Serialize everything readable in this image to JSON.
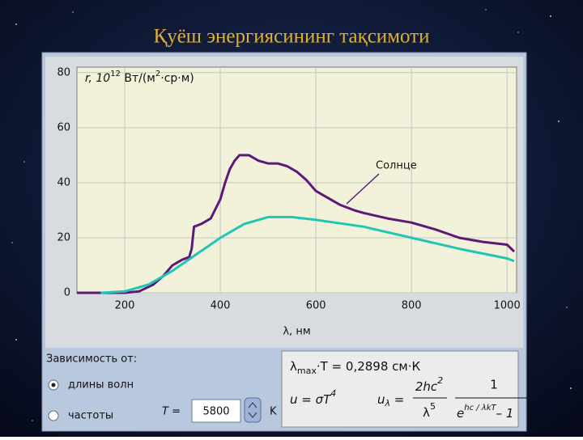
{
  "slide_title": "Қуёш энергиясининг тақсимоти",
  "chart_data": {
    "type": "line",
    "ylabel": [
      "r, 10",
      "12",
      " Вт/(м",
      "2",
      "·ср·м)"
    ],
    "xlabel": "λ, нм",
    "annotation": "Солнце",
    "xlim": [
      100,
      1020
    ],
    "ylim": [
      0,
      82
    ],
    "xticks": [
      200,
      400,
      600,
      800,
      1000
    ],
    "yticks": [
      0,
      20,
      40,
      60,
      80
    ],
    "grid": true,
    "series": [
      {
        "name": "Солнце",
        "color": "#5c1a78",
        "x": [
          100,
          200,
          230,
          260,
          280,
          300,
          320,
          335,
          340,
          345,
          360,
          380,
          400,
          410,
          420,
          430,
          440,
          460,
          480,
          500,
          520,
          540,
          560,
          580,
          600,
          620,
          650,
          680,
          700,
          750,
          800,
          850,
          900,
          950,
          1000,
          1015
        ],
        "values": [
          0,
          0,
          0.5,
          3,
          6,
          10,
          12,
          13,
          16,
          24,
          25,
          27,
          34,
          40,
          45,
          48,
          50,
          50,
          48,
          47,
          47,
          46,
          44,
          41,
          37,
          35,
          32,
          30,
          29,
          27,
          25.5,
          23,
          20,
          18.5,
          17.5,
          15
        ]
      },
      {
        "color": "#22c4b4",
        "x": [
          150,
          200,
          250,
          300,
          350,
          400,
          450,
          500,
          550,
          600,
          700,
          800,
          900,
          1000,
          1015
        ],
        "values": [
          0,
          0.5,
          3,
          8,
          14,
          20,
          25,
          27.5,
          27.5,
          26.5,
          24,
          20,
          16,
          12.5,
          11.5
        ]
      }
    ]
  },
  "controls": {
    "depends_label": "Зависимость от:",
    "options": [
      "длины волн",
      "частоты"
    ],
    "selected": 0,
    "t_label": "T =",
    "t_value": 5800,
    "t_unit": "K"
  },
  "formulas": {
    "wien": [
      "λ",
      "max",
      "·T = 0,2898 см·К"
    ],
    "stefan": [
      "u = σT",
      "4"
    ],
    "planck_lhs": [
      "u",
      "λ",
      " ="
    ],
    "planck_num1": [
      "2hc",
      "2"
    ],
    "planck_den1": [
      "λ",
      "5"
    ],
    "planck_num2": "1",
    "planck_den2": [
      "e",
      "hc / λkT",
      "– 1"
    ]
  }
}
